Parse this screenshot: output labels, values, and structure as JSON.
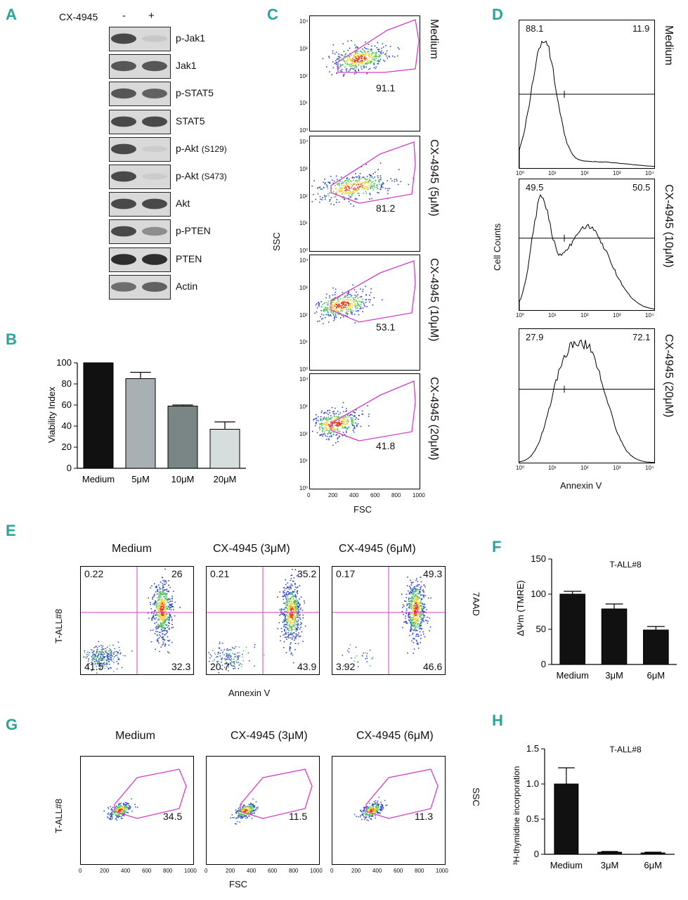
{
  "panels": {
    "A": "A",
    "B": "B",
    "C": "C",
    "D": "D",
    "E": "E",
    "F": "F",
    "G": "G",
    "H": "H"
  },
  "panelA": {
    "treatment_label": "CX-4945",
    "minus": "-",
    "plus": "+",
    "blots": [
      {
        "name": "p-Jak1",
        "suffix": ""
      },
      {
        "name": "Jak1",
        "suffix": ""
      },
      {
        "name": "p-STAT5",
        "suffix": ""
      },
      {
        "name": "STAT5",
        "suffix": ""
      },
      {
        "name": "p-Akt",
        "suffix": "(S129)"
      },
      {
        "name": "p-Akt",
        "suffix": "(S473)"
      },
      {
        "name": "Akt",
        "suffix": ""
      },
      {
        "name": "p-PTEN",
        "suffix": ""
      },
      {
        "name": "PTEN",
        "suffix": ""
      },
      {
        "name": "Actin",
        "suffix": ""
      }
    ]
  },
  "panelC": {
    "ylabel": "SSC",
    "xlabel": "FSC",
    "conditions": [
      "Medium",
      "CX-4945 (5μM)",
      "CX-4945 (10μM)",
      "CX-4945 (20μM)"
    ],
    "values": [
      "91.1",
      "81.2",
      "53.1",
      "41.8"
    ],
    "x_ticks": [
      "0",
      "200",
      "400",
      "600",
      "800",
      "1000"
    ],
    "y_ticks": [
      "10⁰",
      "10¹",
      "10²",
      "10³",
      "10⁴"
    ]
  },
  "panelD": {
    "ylabel": "Cell Counts",
    "xlabel": "Annexin V",
    "conditions": [
      "Medium",
      "CX-4945 (10μM)",
      "CX-4945 (20μM)"
    ],
    "left_values": [
      "88.1",
      "49.5",
      "27.9"
    ],
    "right_values": [
      "11.9",
      "50.5",
      "72.1"
    ],
    "x_ticks": [
      "10⁰",
      "10¹",
      "10²",
      "10³",
      "10⁴"
    ]
  },
  "chart_data": [
    {
      "type": "bar",
      "id": "B",
      "categories": [
        "Medium",
        "5μM",
        "10μM",
        "20μM"
      ],
      "values": [
        100,
        85,
        59,
        37
      ],
      "errors": [
        0,
        6,
        1,
        7
      ],
      "colors": [
        "#111111",
        "#a7b0b3",
        "#7a8586",
        "#d6dddd"
      ],
      "title": "",
      "xlabel": "",
      "ylabel": "Viability Index",
      "ylim": [
        0,
        100
      ],
      "yticks": [
        "0",
        "20",
        "40",
        "60",
        "80",
        "100"
      ]
    },
    {
      "type": "bar",
      "id": "F",
      "categories": [
        "Medium",
        "3μM",
        "6μM"
      ],
      "values": [
        100,
        79,
        49
      ],
      "errors": [
        4,
        7,
        5
      ],
      "title": "T-ALL#8",
      "ylabel": "ΔΨm (TMRE)",
      "ylim": [
        0,
        150
      ],
      "yticks": [
        "0",
        "50",
        "100",
        "150"
      ]
    },
    {
      "type": "bar",
      "id": "H",
      "categories": [
        "Medium",
        "3μM",
        "6μM"
      ],
      "values": [
        1.0,
        0.03,
        0.02
      ],
      "errors": [
        0.23,
        0.01,
        0.01
      ],
      "title": "T-ALL#8",
      "ylabel": "³H-thymidine incorporation",
      "ylim": [
        0,
        1.5
      ],
      "yticks": [
        "0",
        "0.5",
        "1.0",
        "1.5"
      ]
    }
  ],
  "panelE": {
    "titles": [
      "Medium",
      "CX-4945 (3μM)",
      "CX-4945 (6μM)"
    ],
    "ylabel": "T-ALL#8",
    "xlabel": "Annexin V",
    "right_label": "7AAD",
    "quadrants": [
      {
        "ul": "0.22",
        "ur": "26",
        "ll": "41.5",
        "lr": "32.3"
      },
      {
        "ul": "0.21",
        "ur": "35.2",
        "ll": "20.7",
        "lr": "43.9"
      },
      {
        "ul": "0.17",
        "ur": "49.3",
        "ll": "3.92",
        "lr": "46.6"
      }
    ]
  },
  "panelG": {
    "titles": [
      "Medium",
      "CX-4945 (3μM)",
      "CX-4945 (6μM)"
    ],
    "ylabel": "T-ALL#8",
    "xlabel": "FSC",
    "right_label": "SSC",
    "values": [
      "34.5",
      "11.5",
      "11.3"
    ],
    "x_ticks": [
      "0",
      "200",
      "400",
      "600",
      "800",
      "1000"
    ]
  }
}
